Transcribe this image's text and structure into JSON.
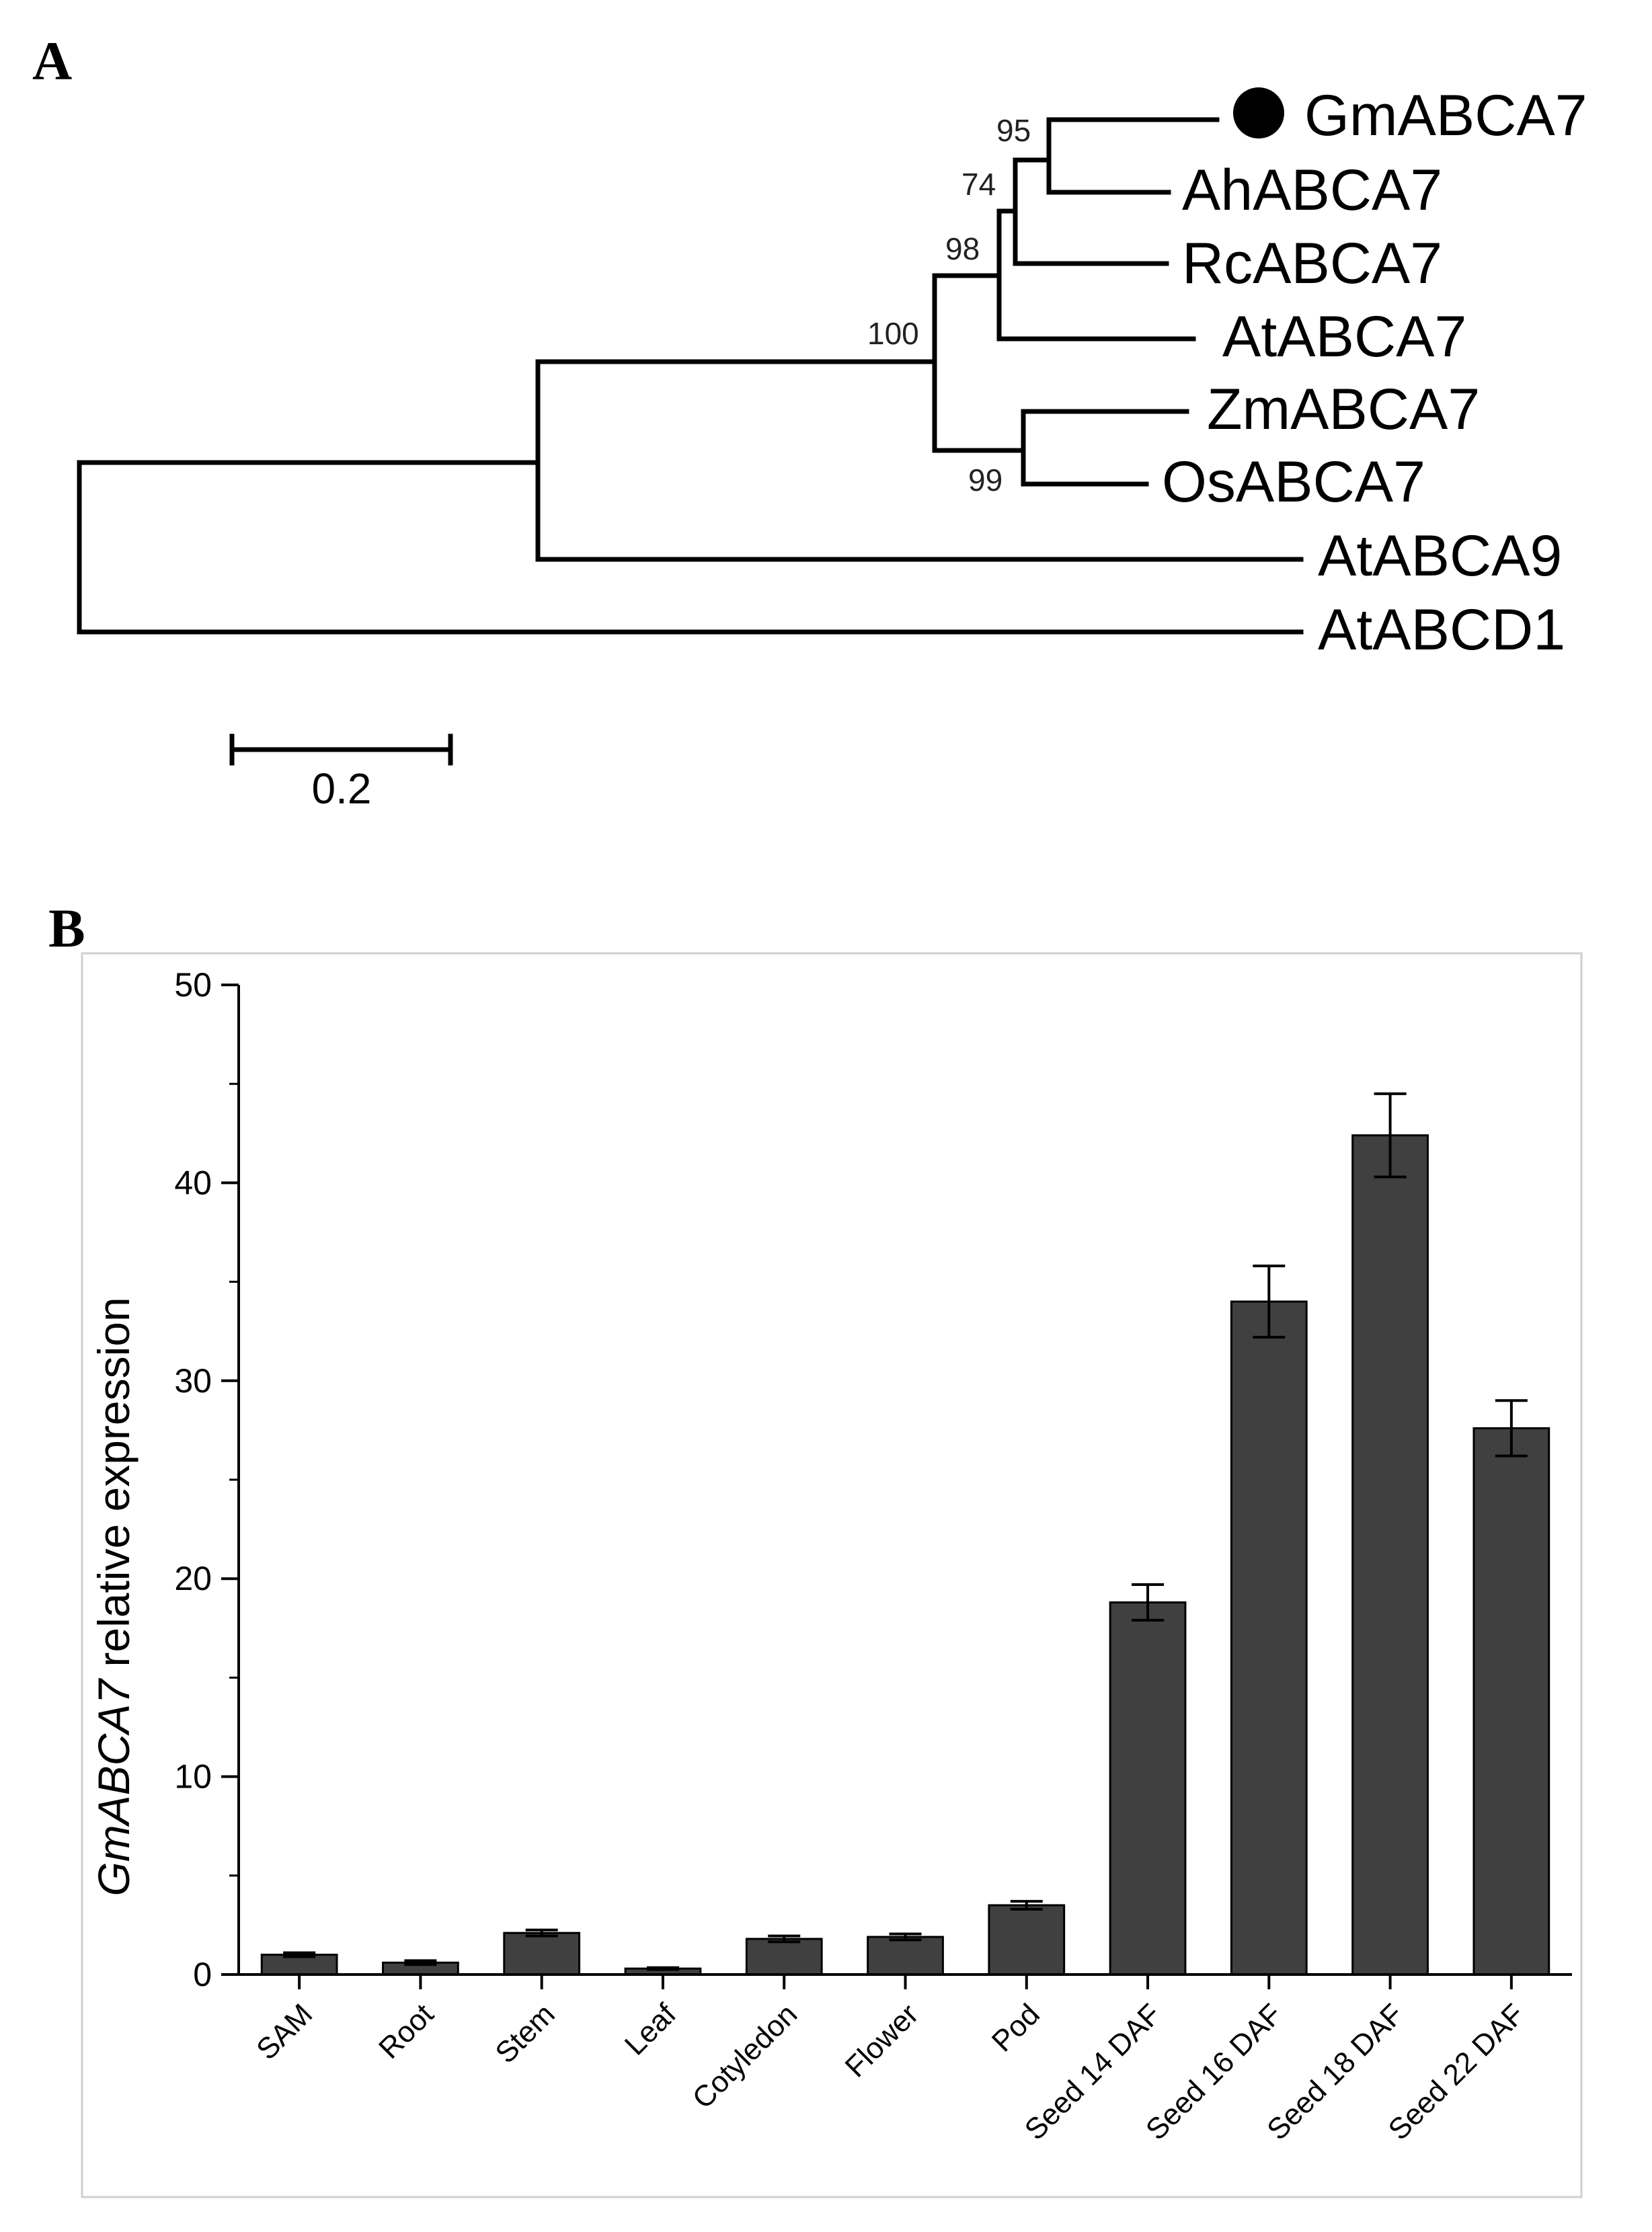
{
  "panel_a": {
    "letter": "A",
    "tree": {
      "leaves": [
        "GmABCA7",
        "AhABCA7",
        "RcABCA7",
        "AtABCA7",
        "ZmABCA7",
        "OsABCA7",
        "AtABCA9",
        "AtABCD1"
      ],
      "highlighted_leaf": "GmABCA7",
      "bootstrap_values": [
        "95",
        "74",
        "98",
        "100",
        "99"
      ],
      "scale_bar_label": "0.2",
      "scale_bar_length": 0.2
    }
  },
  "chart_data": {
    "panel_letter": "B",
    "type": "bar",
    "title": "",
    "xlabel": "",
    "ylabel_italic": "GmABCA7",
    "ylabel_rest": " relative expression",
    "ylim": [
      0,
      50
    ],
    "yticks": [
      0,
      10,
      20,
      30,
      40,
      50
    ],
    "grid": false,
    "categories": [
      "SAM",
      "Root",
      "Stem",
      "Leaf",
      "Cotyledon",
      "Flower",
      "Pod",
      "Seed 14 DAF",
      "Seed 16 DAF",
      "Seed 18 DAF",
      "Seed 22 DAF"
    ],
    "values": [
      1.0,
      0.6,
      2.1,
      0.3,
      1.8,
      1.9,
      3.5,
      18.8,
      34.0,
      42.4,
      27.6
    ],
    "errors": [
      0.1,
      0.1,
      0.15,
      0.05,
      0.15,
      0.15,
      0.2,
      0.9,
      1.8,
      2.1,
      1.4
    ],
    "bar_color": "#404040"
  }
}
